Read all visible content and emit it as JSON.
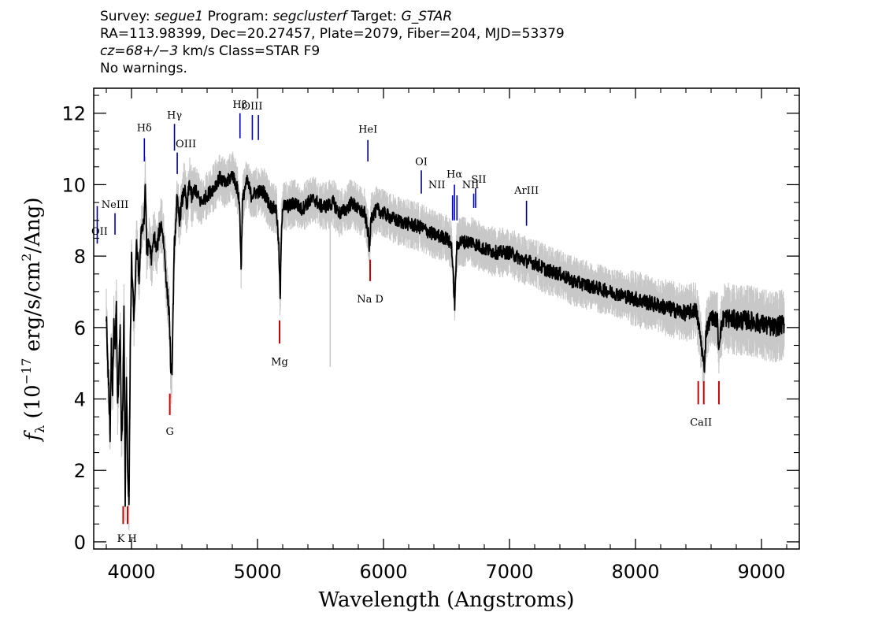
{
  "header": {
    "line1": {
      "survey_label": "Survey: ",
      "survey": "segue1",
      "program_label": " Program: ",
      "program": "segclusterf",
      "target_label": " Target: ",
      "target": "G_STAR"
    },
    "line2": "RA=113.98399, Dec=20.27457, Plate=2079, Fiber=204, MJD=53379",
    "line3": {
      "cz": "cz=68+/−3",
      "rest": " km/s Class=STAR F9"
    },
    "line4": "No warnings."
  },
  "colors": {
    "flux": "#000000",
    "error_band": "#c8c8c8",
    "emission_line": "#0000cc",
    "emission_line_alt": "#000080",
    "absorption_line": "#cc0000",
    "frame": "#000000"
  },
  "chart_data": {
    "type": "line",
    "title": "",
    "xlabel": "Wavelength (Angstroms)",
    "ylabel": "fλ (10⁻¹⁷ erg/s/cm²/Ang)",
    "ylabel_parts": {
      "f": "f",
      "sub": "λ",
      "pre": " (10",
      "exp1": "−17",
      "mid": " erg/s/cm",
      "exp2": "2",
      "post": "/Ang)"
    },
    "xlim": [
      3700,
      9300
    ],
    "ylim": [
      -0.2,
      12.7
    ],
    "x_ticks": [
      4000,
      5000,
      6000,
      7000,
      8000,
      9000
    ],
    "x_tick_labels": [
      "4000",
      "5000",
      "6000",
      "7000",
      "8000",
      "9000"
    ],
    "y_ticks": [
      0,
      2,
      4,
      6,
      8,
      10,
      12
    ],
    "y_tick_labels": [
      "0",
      "2",
      "4",
      "6",
      "8",
      "10",
      "12"
    ],
    "grid": false,
    "series": [
      {
        "x": [
          3800,
          3810,
          3820,
          3830,
          3840,
          3850,
          3860,
          3870,
          3880,
          3890,
          3900,
          3910,
          3920,
          3930,
          3940,
          3950,
          3960,
          3970,
          3980,
          3990,
          4000,
          4020,
          4040,
          4060,
          4080,
          4100,
          4110,
          4120,
          4140,
          4160,
          4180,
          4200,
          4220,
          4240,
          4260,
          4280,
          4300,
          4310,
          4320,
          4330,
          4340,
          4350,
          4360,
          4380,
          4400,
          4420,
          4440,
          4460,
          4480,
          4500,
          4550,
          4600,
          4650,
          4700,
          4750,
          4800,
          4830,
          4850,
          4860,
          4870,
          4880,
          4900,
          4920,
          4950,
          5000,
          5050,
          5100,
          5150,
          5170,
          5180,
          5190,
          5200,
          5250,
          5300,
          5350,
          5400,
          5450,
          5500,
          5550,
          5600,
          5650,
          5700,
          5750,
          5800,
          5850,
          5880,
          5890,
          5900,
          5950,
          6000,
          6100,
          6200,
          6300,
          6400,
          6500,
          6540,
          6560,
          6565,
          6580,
          6600,
          6700,
          6800,
          6900,
          7000,
          7100,
          7200,
          7300,
          7400,
          7500,
          7600,
          7700,
          7800,
          7900,
          8000,
          8100,
          8200,
          8300,
          8400,
          8480,
          8500,
          8520,
          8540,
          8545,
          8560,
          8600,
          8650,
          8660,
          8670,
          8700,
          8800,
          8900,
          9000,
          9100,
          9180
        ],
        "y": [
          6.4,
          5.0,
          4.3,
          3.0,
          5.5,
          4.2,
          6.1,
          5.5,
          6.8,
          3.8,
          4.8,
          5.9,
          2.8,
          3.6,
          6.6,
          1.2,
          4.6,
          2.0,
          1.1,
          5.2,
          7.9,
          6.2,
          8.3,
          7.4,
          8.8,
          9.0,
          10.1,
          8.1,
          8.4,
          7.9,
          8.6,
          8.1,
          8.7,
          8.9,
          8.2,
          7.1,
          6.4,
          5.0,
          4.5,
          6.5,
          8.3,
          8.8,
          9.6,
          9.0,
          9.5,
          9.9,
          9.3,
          10.1,
          9.6,
          9.9,
          9.5,
          9.7,
          9.9,
          10.2,
          10.0,
          10.3,
          10.0,
          9.7,
          9.2,
          7.6,
          9.5,
          9.9,
          10.1,
          9.7,
          9.8,
          9.8,
          9.4,
          9.3,
          8.2,
          6.7,
          8.8,
          9.4,
          9.4,
          9.5,
          9.3,
          9.5,
          9.6,
          9.4,
          9.4,
          9.5,
          9.2,
          9.3,
          9.5,
          9.3,
          9.2,
          8.6,
          8.1,
          9.1,
          9.3,
          9.2,
          9.0,
          8.9,
          8.8,
          8.6,
          8.5,
          8.3,
          7.0,
          6.6,
          8.2,
          8.4,
          8.4,
          8.2,
          8.1,
          8.1,
          7.9,
          7.8,
          7.6,
          7.5,
          7.3,
          7.2,
          7.1,
          7.0,
          6.9,
          6.8,
          6.7,
          6.6,
          6.5,
          6.4,
          6.5,
          6.1,
          5.6,
          5.0,
          4.8,
          5.9,
          6.3,
          6.2,
          5.4,
          5.8,
          6.3,
          6.2,
          6.2,
          6.1,
          6.0,
          6.1
        ],
        "err": [
          0.45,
          0.45,
          0.45,
          0.45,
          0.45,
          0.45,
          0.45,
          0.45,
          0.45,
          0.45,
          0.45,
          0.45,
          0.45,
          0.45,
          0.45,
          0.45,
          0.45,
          0.45,
          0.45,
          0.45,
          0.4,
          0.4,
          0.4,
          0.4,
          0.4,
          0.4,
          0.4,
          0.4,
          0.4,
          0.4,
          0.4,
          0.4,
          0.4,
          0.4,
          0.4,
          0.4,
          0.4,
          0.4,
          0.4,
          0.4,
          0.4,
          0.4,
          0.4,
          0.4,
          0.4,
          0.4,
          0.4,
          0.4,
          0.4,
          0.35,
          0.35,
          0.35,
          0.35,
          0.35,
          0.35,
          0.35,
          0.35,
          0.35,
          0.35,
          0.35,
          0.35,
          0.35,
          0.35,
          0.35,
          0.35,
          0.35,
          0.35,
          0.35,
          0.35,
          0.35,
          0.35,
          0.35,
          0.35,
          0.35,
          0.35,
          0.35,
          0.35,
          0.35,
          0.35,
          0.35,
          0.35,
          0.35,
          0.35,
          0.35,
          0.35,
          0.35,
          0.35,
          0.35,
          0.35,
          0.35,
          0.35,
          0.35,
          0.35,
          0.35,
          0.35,
          0.35,
          0.35,
          0.35,
          0.35,
          0.35,
          0.35,
          0.35,
          0.35,
          0.35,
          0.35,
          0.35,
          0.35,
          0.35,
          0.35,
          0.35,
          0.35,
          0.35,
          0.35,
          0.4,
          0.4,
          0.4,
          0.4,
          0.4,
          0.4,
          0.4,
          0.4,
          0.4,
          0.4,
          0.4,
          0.4,
          0.4,
          0.4,
          0.4,
          0.5,
          0.5,
          0.5,
          0.5,
          0.5,
          0.5
        ]
      }
    ],
    "lines": [
      {
        "label": "OII",
        "kind": "emission",
        "x": 3728,
        "y0": 8.35,
        "y1": 9.4,
        "label_y": 8.6,
        "color": "#000080"
      },
      {
        "label": "NeIII",
        "kind": "emission",
        "x": 3869,
        "y0": 8.6,
        "y1": 9.2,
        "label_y": 9.35,
        "color": "#0000cc"
      },
      {
        "label": "Hδ",
        "kind": "emission",
        "x": 4102,
        "y0": 10.65,
        "y1": 11.3,
        "label_y": 11.5,
        "color": "#0000cc"
      },
      {
        "label": "Hγ",
        "kind": "emission",
        "x": 4341,
        "y0": 10.95,
        "y1": 11.7,
        "label_y": 11.85,
        "color": "#000080"
      },
      {
        "label": "OIII",
        "kind": "emission",
        "x": 4363,
        "y0": 10.3,
        "y1": 10.9,
        "label_y": 11.05,
        "color": "#000080"
      },
      {
        "label": "Hβ",
        "kind": "emission",
        "x": 4861,
        "y0": 11.3,
        "y1": 12.0,
        "label_y": 12.15,
        "color": "#0000cc"
      },
      {
        "label": "OIII",
        "kind": "emission",
        "x": 4959,
        "y0": 11.25,
        "y1": 11.95,
        "label_y": 12.1,
        "color": "#0000cc"
      },
      {
        "label": "",
        "kind": "emission",
        "x": 5007,
        "y0": 11.25,
        "y1": 11.95,
        "label_y": 12.1,
        "color": "#0000cc"
      },
      {
        "label": "HeI",
        "kind": "emission",
        "x": 5876,
        "y0": 10.65,
        "y1": 11.25,
        "label_y": 11.45,
        "color": "#000080"
      },
      {
        "label": "OI",
        "kind": "emission",
        "x": 6300,
        "y0": 9.75,
        "y1": 10.4,
        "label_y": 10.55,
        "color": "#000080"
      },
      {
        "label": "NII",
        "kind": "emission",
        "x": 6548,
        "y0": 9.0,
        "y1": 9.7,
        "label_y": 9.9,
        "color": "#0000cc"
      },
      {
        "label": "Hα",
        "kind": "emission",
        "x": 6563,
        "y0": 9.0,
        "y1": 10.0,
        "label_y": 10.2,
        "color": "#0000cc"
      },
      {
        "label": "",
        "kind": "emission",
        "x": 6583,
        "y0": 9.0,
        "y1": 9.7,
        "label_y": 9.9,
        "color": "#0000cc"
      },
      {
        "label": "NII",
        "kind": "emission",
        "x": 6716,
        "y0": 9.35,
        "y1": 9.75,
        "label_y": 9.9,
        "color": "#0000cc"
      },
      {
        "label": "SII",
        "kind": "emission",
        "x": 6731,
        "y0": 9.35,
        "y1": 9.9,
        "label_y": 10.05,
        "color": "#0000cc"
      },
      {
        "label": "ArIII",
        "kind": "emission",
        "x": 7135,
        "y0": 8.85,
        "y1": 9.55,
        "label_y": 9.75,
        "color": "#000080"
      },
      {
        "label": "K",
        "kind": "absorption",
        "x": 3934,
        "y0": 0.5,
        "y1": 1.0,
        "label_y": 0.0,
        "color": "#cc0000"
      },
      {
        "label": "H",
        "kind": "absorption",
        "x": 3969,
        "y0": 0.5,
        "y1": 1.0,
        "label_y": 0.0,
        "color": "#cc0000"
      },
      {
        "label": "G",
        "kind": "absorption",
        "x": 4304,
        "y0": 3.55,
        "y1": 4.15,
        "label_y": 3.0,
        "color": "#cc0000"
      },
      {
        "label": "Mg",
        "kind": "absorption",
        "x": 5175,
        "y0": 5.55,
        "y1": 6.2,
        "label_y": 4.95,
        "color": "#cc0000"
      },
      {
        "label": "Na D",
        "kind": "absorption",
        "x": 5894,
        "y0": 7.3,
        "y1": 7.9,
        "label_y": 6.7,
        "color": "#cc0000"
      },
      {
        "label": "CaII",
        "kind": "absorption",
        "x": 8498,
        "y0": 3.85,
        "y1": 4.5,
        "label_y": 3.25,
        "color": "#cc0000"
      },
      {
        "label": "",
        "kind": "absorption",
        "x": 8542,
        "y0": 3.85,
        "y1": 4.5,
        "label_y": 3.25,
        "color": "#cc0000"
      },
      {
        "label": "",
        "kind": "absorption",
        "x": 8662,
        "y0": 3.85,
        "y1": 4.5,
        "label_y": 3.25,
        "color": "#cc0000"
      }
    ]
  }
}
